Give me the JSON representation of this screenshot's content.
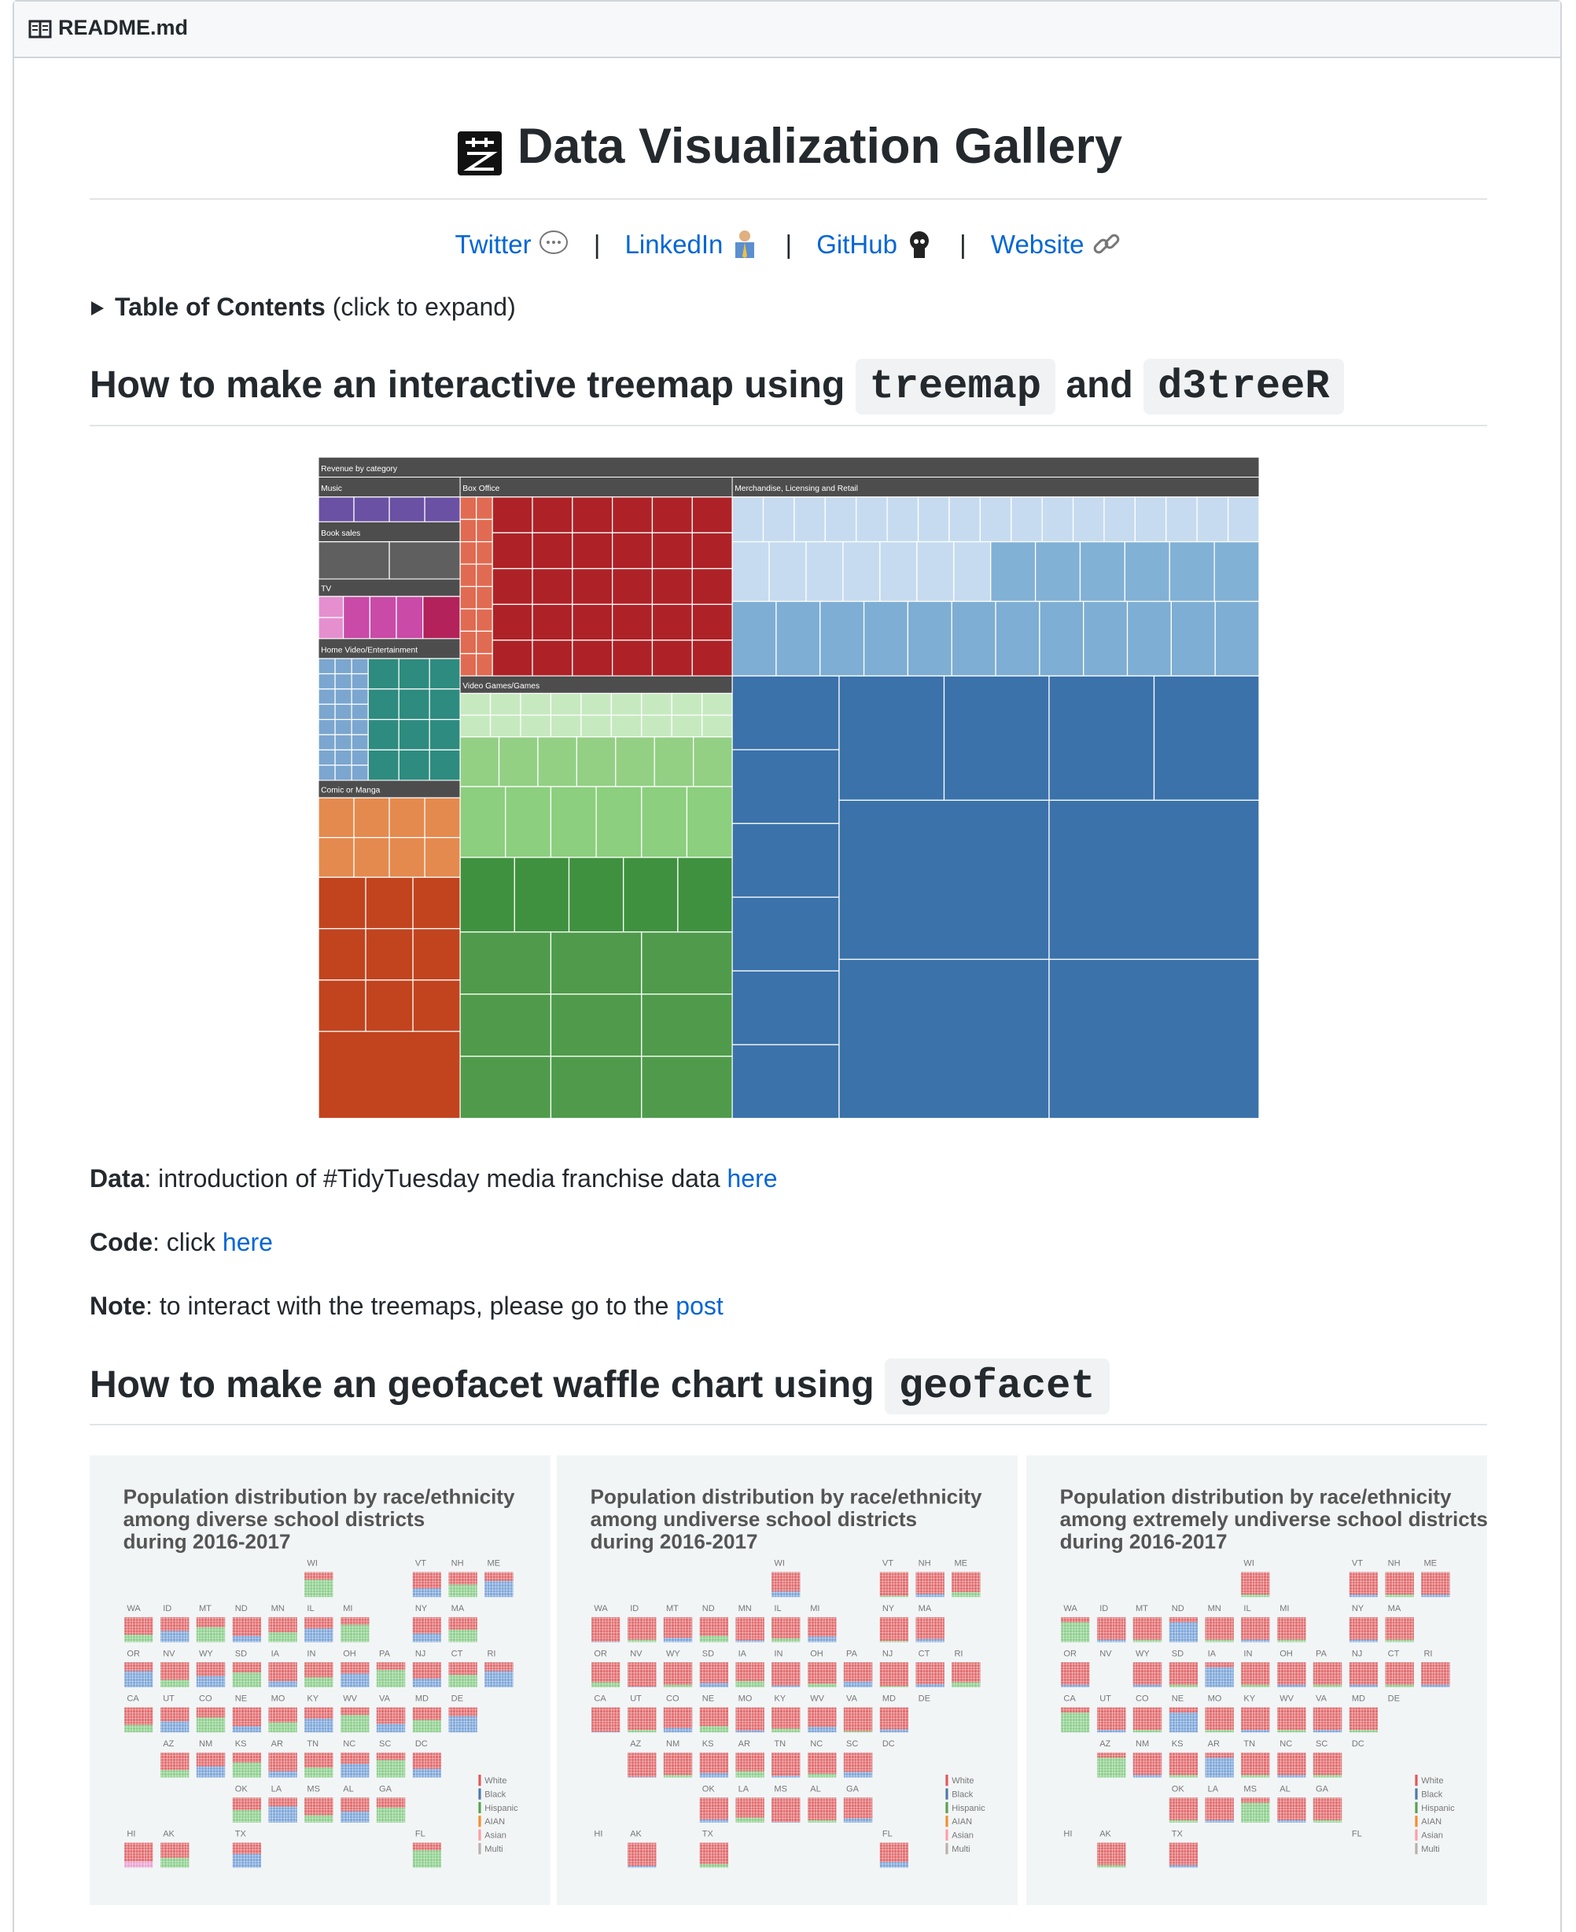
{
  "header": {
    "file": "README.md"
  },
  "title": "Data Visualization Gallery",
  "links": [
    "Twitter",
    "LinkedIn",
    "GitHub",
    "Website"
  ],
  "separator": "|",
  "toc": {
    "label": "Table of Contents",
    "note": "(click to expand)"
  },
  "section1": {
    "heading": [
      "How to make an interactive treemap using",
      "treemap",
      "and",
      "d3treeR"
    ]
  },
  "treemap": {
    "title": "Revenue by category",
    "groups": [
      "Music",
      "Box Office",
      "Merchandise, Licensing and Retail",
      "Book sales",
      "TV",
      "Home Video/Entertainment",
      "Video Games/Games",
      "Comic or Manga"
    ]
  },
  "notes": [
    {
      "label": "Data",
      "text": ": introduction of #TidyTuesday media franchise data ",
      "link": "here"
    },
    {
      "label": "Code",
      "text": ": click ",
      "link": "here"
    },
    {
      "label": "Note",
      "text": ": to interact with the treemaps, please go to the ",
      "link": "post"
    }
  ],
  "section2": {
    "heading": [
      "How to make an geofacet waffle chart using",
      "geofacet"
    ]
  },
  "waffles": {
    "panels": [
      {
        "title": [
          "Population distribution by race/ethnicity",
          "among diverse school districts",
          "during 2016-2017"
        ]
      },
      {
        "title": [
          "Population distribution by race/ethnicity",
          "among undiverse school districts",
          "during 2016-2017"
        ]
      },
      {
        "title": [
          "Population distribution by race/ethnicity",
          "among extremely undiverse school districts",
          "during 2016-2017"
        ]
      }
    ],
    "states": [
      "WI",
      "VT",
      "NH",
      "ME",
      "WA",
      "ID",
      "MT",
      "ND",
      "MN",
      "IL",
      "MI",
      "NY",
      "MA",
      "OR",
      "NV",
      "WY",
      "SD",
      "IA",
      "IN",
      "OH",
      "PA",
      "NJ",
      "CT",
      "RI",
      "CA",
      "UT",
      "CO",
      "NE",
      "MO",
      "KY",
      "WV",
      "VA",
      "MD",
      "DE",
      "AZ",
      "NM",
      "KS",
      "AR",
      "TN",
      "NC",
      "SC",
      "DC",
      "OK",
      "LA",
      "MS",
      "AL",
      "GA",
      "HI",
      "AK",
      "TX",
      "FL"
    ],
    "legend": [
      "White",
      "Black",
      "Hispanic",
      "AIAN",
      "Asian",
      "Multi"
    ]
  }
}
